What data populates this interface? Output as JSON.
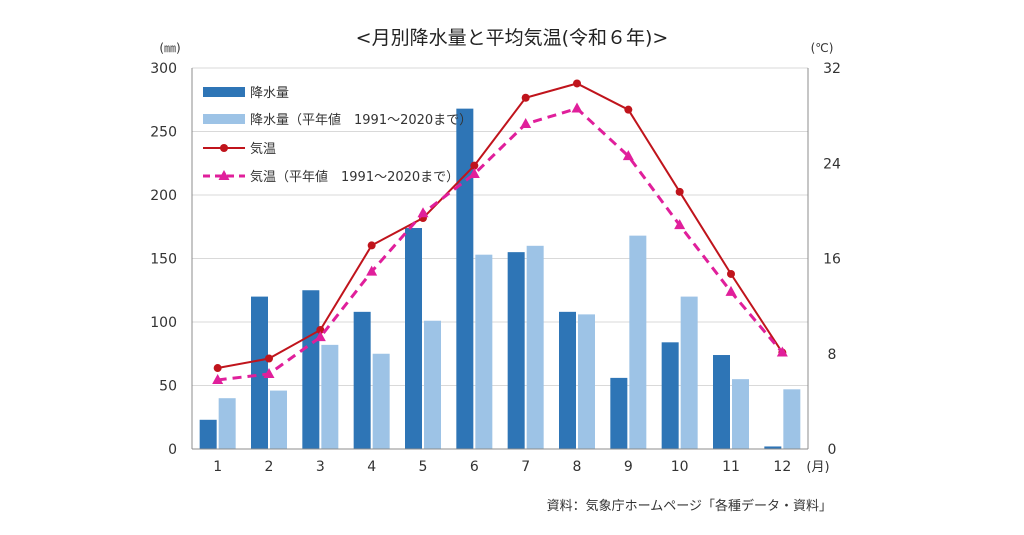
{
  "chart_data": {
    "type": "bar",
    "title": "<月別降水量と平均気温(令和６年)>",
    "left_unit": "(㎜)",
    "right_unit": "(℃)",
    "x_unit": "(月)",
    "categories": [
      "1",
      "2",
      "3",
      "4",
      "5",
      "6",
      "7",
      "8",
      "9",
      "10",
      "11",
      "12"
    ],
    "left_axis": {
      "min": 0,
      "max": 300,
      "ticks": [
        "0",
        "50",
        "100",
        "150",
        "200",
        "250",
        "300"
      ]
    },
    "right_axis": {
      "min": 0,
      "max": 32,
      "ticks": [
        "0",
        "8",
        "16",
        "24",
        "32"
      ]
    },
    "grid": true,
    "legend_position": "top-left",
    "series": [
      {
        "name": "降水量",
        "kind": "bar",
        "axis": "left",
        "values": [
          23,
          120,
          125,
          108,
          174,
          268,
          155,
          108,
          56,
          84,
          74,
          2
        ]
      },
      {
        "name": "降水量（平年値　1991～2020まで）",
        "kind": "bar",
        "axis": "left",
        "values": [
          40,
          46,
          82,
          75,
          101,
          153,
          160,
          106,
          168,
          120,
          55,
          47
        ]
      },
      {
        "name": "気温",
        "kind": "line",
        "axis": "right",
        "marker": "circle",
        "values": [
          6.8,
          7.6,
          10.0,
          17.1,
          19.4,
          23.8,
          29.5,
          30.7,
          28.5,
          21.6,
          14.7,
          8.1
        ]
      },
      {
        "name": "気温（平年値　1991～2020まで）",
        "kind": "line-dashed",
        "axis": "right",
        "marker": "triangle",
        "values": [
          5.8,
          6.3,
          9.4,
          14.9,
          19.8,
          23.1,
          27.3,
          28.6,
          24.6,
          18.8,
          13.2,
          8.1
        ]
      }
    ],
    "colors": {
      "precip": "#2e75b6",
      "precip_normal": "#9dc3e6",
      "temp": "#c0141c",
      "temp_normal": "#e01f9b",
      "grid": "#d9d9d9",
      "axis": "#8c8c8c",
      "text": "#333333"
    },
    "source": "資料：気象庁ホームページ「各種データ・資料」"
  }
}
